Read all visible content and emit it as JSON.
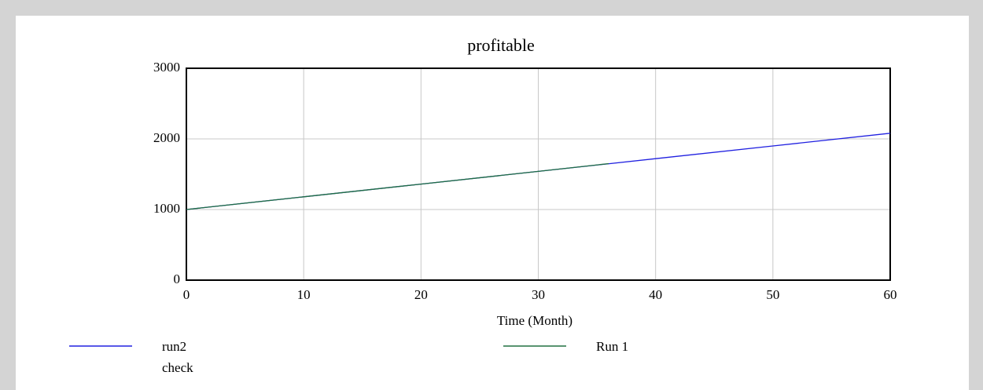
{
  "chart_data": {
    "type": "line",
    "title": "profitable",
    "x_label": "Time (Month)",
    "xlim": [
      0,
      60
    ],
    "xticks": [
      0,
      10,
      20,
      30,
      40,
      50,
      60
    ],
    "ylim": [
      0,
      3000
    ],
    "yticks": [
      0,
      1000,
      2000,
      3000
    ],
    "grid": true,
    "series": [
      {
        "name": "run2 check",
        "color": "#2020e0",
        "x": [
          0,
          10,
          20,
          30,
          40,
          50,
          60
        ],
        "values": [
          1000,
          1180,
          1360,
          1540,
          1720,
          1900,
          2080
        ]
      },
      {
        "name": "Run 1",
        "color": "#207040",
        "x": [
          0,
          10,
          20,
          30,
          36
        ],
        "values": [
          1000,
          1180,
          1360,
          1540,
          1650
        ]
      }
    ]
  }
}
